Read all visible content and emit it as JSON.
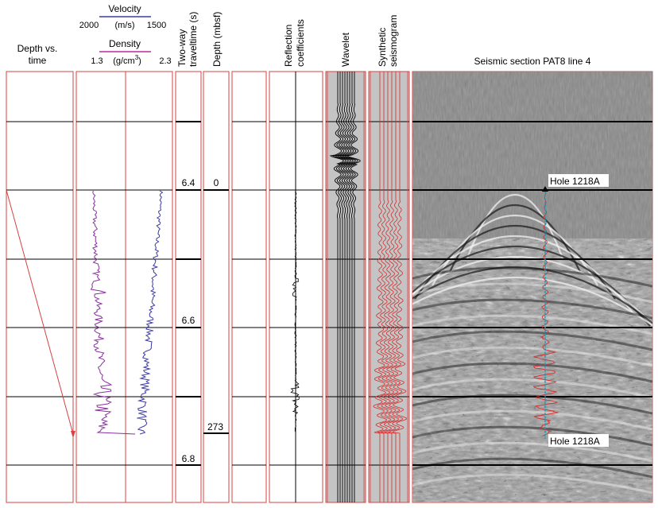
{
  "headers": {
    "depth_vs_time": [
      "Depth vs.",
      "time"
    ],
    "velocity_title": "Velocity",
    "velocity_min": "2000",
    "velocity_unit": "(m/s)",
    "velocity_max": "1500",
    "density_title": "Density",
    "density_min": "1.3",
    "density_unit": "(g/cm",
    "density_unit_sup": "3",
    "density_unit_close": ")",
    "density_max": "2.3",
    "twt": [
      "Two-way",
      "traveltime (s)"
    ],
    "depth": "Depth (mbsf)",
    "reflection": [
      "Reflection",
      "coefficients"
    ],
    "wavelet": "Wavelet",
    "synthetic": [
      "Synthetic",
      "seismogram"
    ],
    "seismic_title": "Seismic section PAT8 line 4"
  },
  "time_axis": {
    "labels": [
      {
        "t": 6.4,
        "text": "6.4"
      },
      {
        "t": 6.6,
        "text": "6.6"
      },
      {
        "t": 6.8,
        "text": "6.8"
      }
    ]
  },
  "depth_axis": {
    "labels": [
      {
        "t": 6.4,
        "text": "0"
      },
      {
        "t": 6.73,
        "text": "273"
      }
    ]
  },
  "seismic": {
    "hole_top_label": "Hole 1218A",
    "hole_bottom_label": "Hole 1218A"
  },
  "colors": {
    "frame": "#d94040",
    "velocity": "#3a3aa8",
    "density": "#8a2fa0",
    "wavelet_bg": "#c4c4c4",
    "hole_line": "#1aa0b8",
    "synthetic_trace": "#d03030"
  }
}
